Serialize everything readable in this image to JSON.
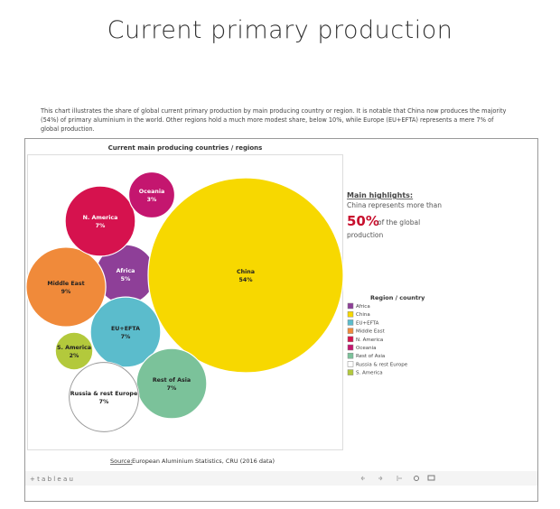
{
  "page": {
    "title": "Current primary production",
    "description": "This chart illustrates the share of global current primary production by main producing country or region. It is notable that China now produces the majority (54%) of primary aluminium in the world. Other regions hold a much more modest share, below 10%, while Europe (EU+EFTA) represents a mere 7% of global production.",
    "highlights": {
      "heading": "Main highlights:",
      "line1": "China represents more than",
      "emphasis": "50%",
      "line2": "of the global",
      "line3": "production"
    },
    "source_label": "Source:",
    "source_text": "European Aluminium Statistics, CRU (2016 data)",
    "brand": "+ t a b l e a u"
  },
  "chart_data": {
    "type": "bubble",
    "title": "Current main producing countries / regions",
    "legend_title": "Region / country",
    "legend": "right",
    "categories": [
      "Africa",
      "China",
      "EU+EFTA",
      "Middle East",
      "N. America",
      "Oceania",
      "Rest of Asia",
      "Russia & rest Europe",
      "S. America"
    ],
    "values": [
      5,
      54,
      7,
      9,
      7,
      3,
      7,
      7,
      2
    ],
    "value_labels": [
      "5%",
      "54%",
      "7%",
      "9%",
      "7%",
      "3%",
      "7%",
      "7%",
      "2%"
    ],
    "colors": [
      "#8e3f98",
      "#f7d800",
      "#5bbccc",
      "#f08a3a",
      "#d6124e",
      "#c4166f",
      "#7bc29a",
      "#ffffff",
      "#b3c93c"
    ]
  }
}
